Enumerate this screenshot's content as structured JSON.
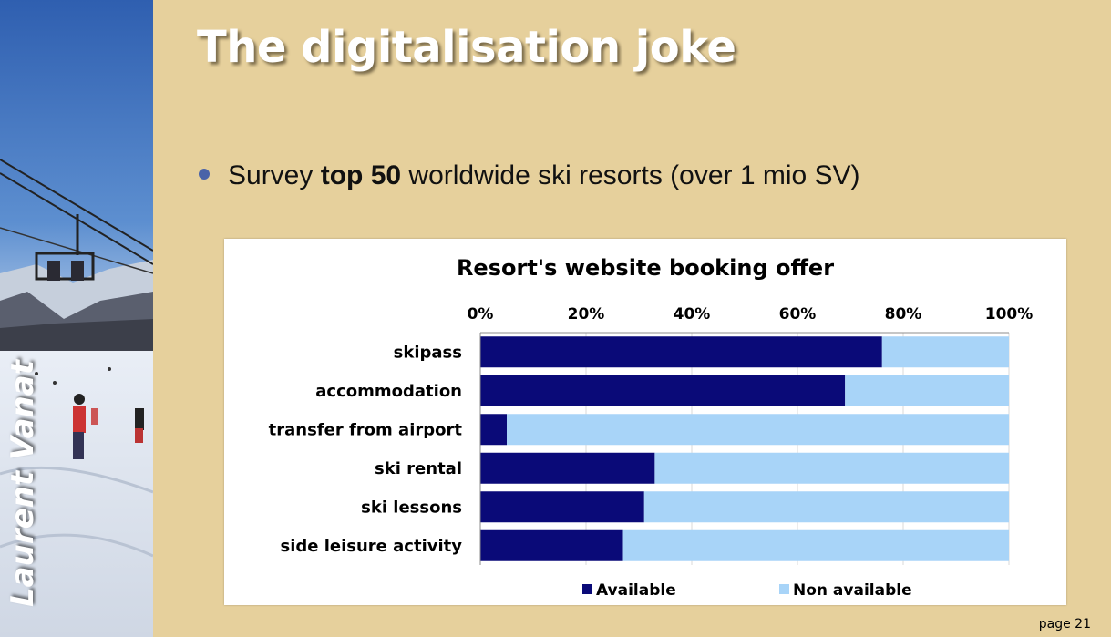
{
  "slide": {
    "title": "The digitalisation joke",
    "author": "Laurent Vanat",
    "page_label": "page 21",
    "bullet": {
      "prefix": "Survey ",
      "emphasis": "top 50",
      "suffix": " worldwide ski resorts (over 1 mio SV)"
    }
  },
  "colors": {
    "available": "#0a0a78",
    "non_available": "#a8d4f8",
    "background": "#e6d09c"
  },
  "chart_data": {
    "type": "bar",
    "orientation": "horizontal",
    "stacked": "percent",
    "title": "Resort's website booking offer",
    "xlim": [
      0,
      100
    ],
    "x_ticks": [
      "0%",
      "20%",
      "40%",
      "60%",
      "80%",
      "100%"
    ],
    "x_axis_position": "top",
    "legend_position": "bottom",
    "categories": [
      "skipass",
      "accommodation",
      "transfer from airport",
      "ski rental",
      "ski lessons",
      "side leisure activity"
    ],
    "series": [
      {
        "name": "Available",
        "values": [
          76,
          69,
          5,
          33,
          31,
          27
        ]
      },
      {
        "name": "Non available",
        "values": [
          24,
          31,
          95,
          67,
          69,
          73
        ]
      }
    ]
  }
}
